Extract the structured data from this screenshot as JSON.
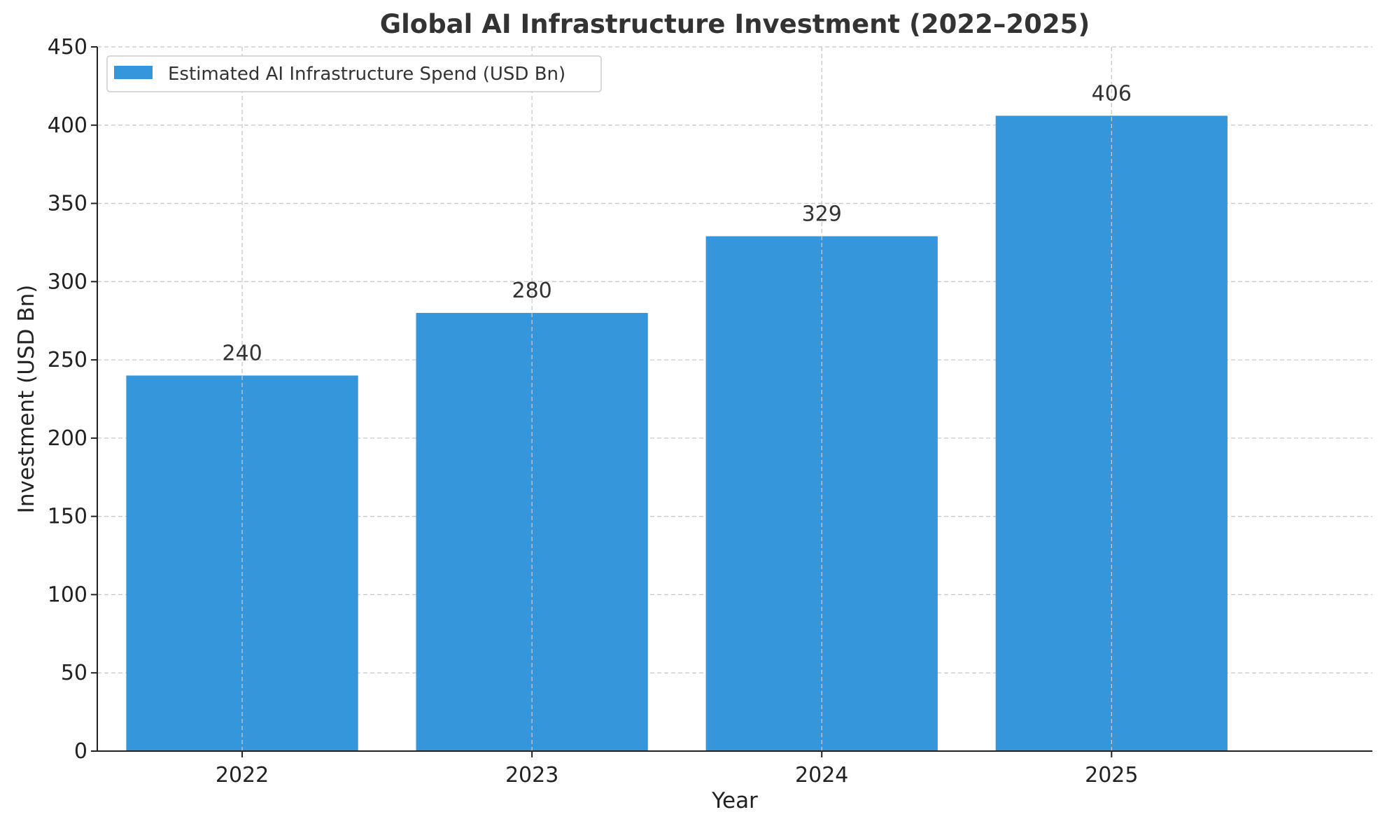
{
  "chart_data": {
    "type": "bar",
    "title": "Global AI Infrastructure Investment (2022–2025)",
    "xlabel": "Year",
    "ylabel": "Investment (USD Bn)",
    "categories": [
      "2022",
      "2023",
      "2024",
      "2025"
    ],
    "series": [
      {
        "name": "Estimated AI Infrastructure Spend (USD Bn)",
        "values": [
          240,
          280,
          329,
          406
        ],
        "color": "#3596db"
      }
    ],
    "data_labels": [
      "240",
      "280",
      "329",
      "406"
    ],
    "ylim": [
      0,
      450
    ],
    "yticks": [
      0,
      50,
      100,
      150,
      200,
      250,
      300,
      350,
      400,
      450
    ],
    "grid": true,
    "legend_position": "top-left"
  }
}
